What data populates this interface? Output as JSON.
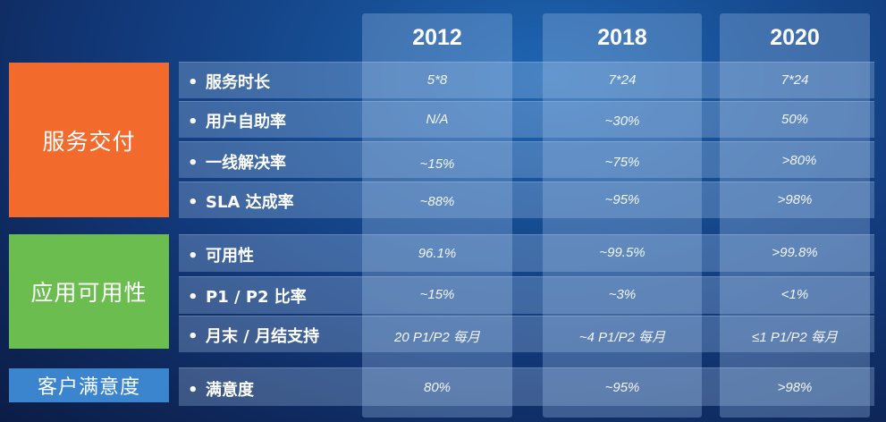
{
  "colors": {
    "service_delivery": "#f26a2c",
    "app_availability": "#6bbd4f",
    "customer_satisfaction": "#3b85cf"
  },
  "years": [
    "2012",
    "2018",
    "2020"
  ],
  "categories": [
    {
      "label": "服务交付",
      "rows": [
        {
          "label": "服务时长",
          "values": [
            "5*8",
            "7*24",
            "7*24"
          ]
        },
        {
          "label": "用户自助率",
          "values": [
            "N/A",
            "~30%",
            "50%"
          ]
        },
        {
          "label": "一线解决率",
          "values": [
            "~15%",
            "~75%",
            ">80%"
          ]
        },
        {
          "label": "SLA 达成率",
          "values": [
            "~88%",
            "~95%",
            ">98%"
          ]
        }
      ]
    },
    {
      "label": "应用可用性",
      "rows": [
        {
          "label": "可用性",
          "values": [
            "96.1%",
            "~99.5%",
            ">99.8%"
          ]
        },
        {
          "label": "P1 / P2 比率",
          "values": [
            "~15%",
            "~3%",
            "<1%"
          ]
        },
        {
          "label": "月末 / 月结支持",
          "values": [
            "20 P1/P2 每月",
            "~4 P1/P2 每月",
            "≤1 P1/P2 每月"
          ]
        }
      ]
    },
    {
      "label": "客户满意度",
      "rows": [
        {
          "label": "满意度",
          "values": [
            "80%",
            "~95%",
            ">98%"
          ]
        }
      ]
    }
  ]
}
